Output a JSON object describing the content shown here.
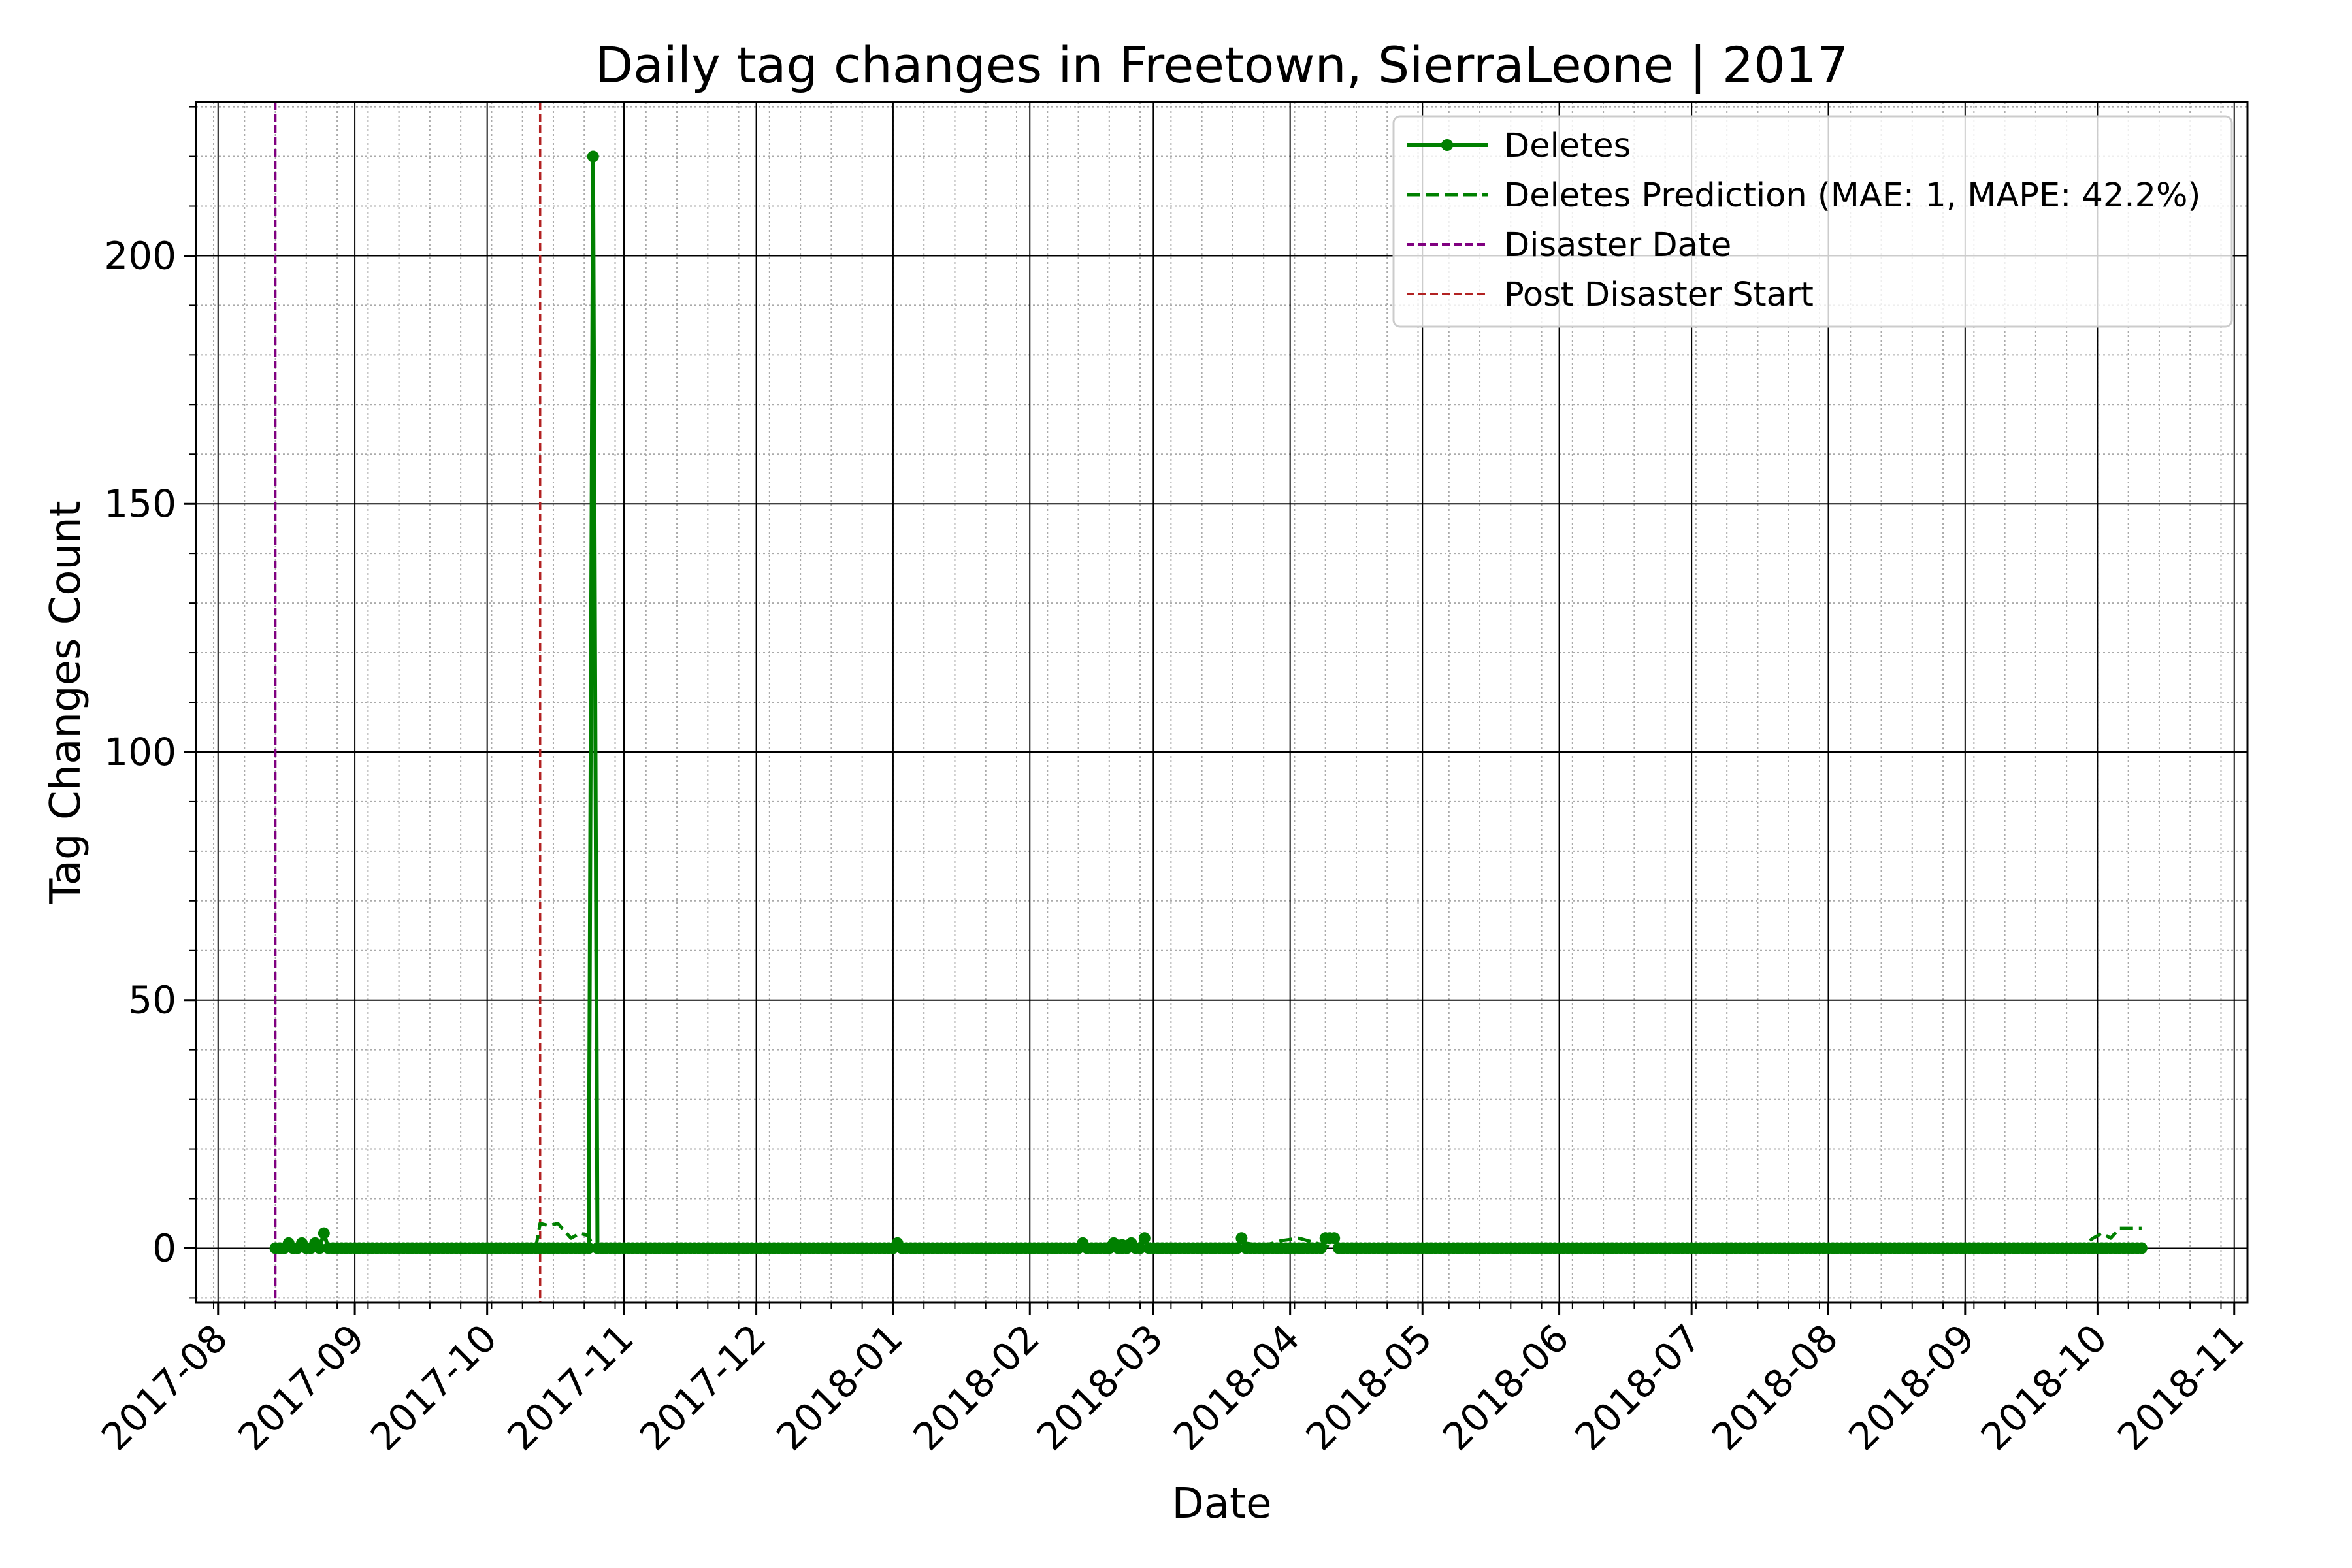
{
  "chart_data": {
    "type": "line",
    "title": "Daily tag changes in Freetown, SierraLeone | 2017",
    "xlabel": "Date",
    "ylabel": "Tag Changes Count",
    "x_range": [
      "2017-07-27",
      "2018-11-04"
    ],
    "ylim": [
      -11,
      231
    ],
    "yticks": [
      0,
      50,
      100,
      150,
      200
    ],
    "xticks": [
      "2017-08-01",
      "2017-09-01",
      "2017-10-01",
      "2017-11-01",
      "2017-12-01",
      "2018-01-01",
      "2018-02-01",
      "2018-03-01",
      "2018-04-01",
      "2018-05-01",
      "2018-06-01",
      "2018-07-01",
      "2018-08-01",
      "2018-09-01",
      "2018-10-01",
      "2018-11-01"
    ],
    "xtick_labels": [
      "2017-08",
      "2017-09",
      "2017-10",
      "2017-11",
      "2017-12",
      "2018-01",
      "2018-02",
      "2018-03",
      "2018-04",
      "2018-05",
      "2018-06",
      "2018-07",
      "2018-08",
      "2018-09",
      "2018-10",
      "2018-11"
    ],
    "grid": true,
    "legend_position": "top-right",
    "colors": {
      "deletes": "#008000",
      "prediction": "#008000",
      "disaster": "#800080",
      "post_disaster": "#b22222"
    },
    "series": [
      {
        "name": "Deletes",
        "style": "solid-markers",
        "baseline": 0,
        "start": "2017-08-14",
        "end": "2018-10-11",
        "points": [
          [
            "2017-08-17",
            1
          ],
          [
            "2017-08-20",
            1
          ],
          [
            "2017-08-23",
            1
          ],
          [
            "2017-08-25",
            3
          ],
          [
            "2017-10-24",
            0
          ],
          [
            "2017-10-25",
            220
          ],
          [
            "2017-10-26",
            0
          ],
          [
            "2018-01-02",
            1
          ],
          [
            "2018-02-13",
            1
          ],
          [
            "2018-02-20",
            1
          ],
          [
            "2018-02-24",
            1
          ],
          [
            "2018-02-27",
            2
          ],
          [
            "2018-03-21",
            2
          ],
          [
            "2018-04-09",
            2
          ],
          [
            "2018-04-10",
            2
          ],
          [
            "2018-04-11",
            2
          ]
        ]
      },
      {
        "name": "Deletes Prediction (MAE: 1, MAPE: 42.2%)",
        "style": "dashed",
        "points": [
          [
            "2017-10-12",
            0
          ],
          [
            "2017-10-13",
            5
          ],
          [
            "2017-10-15",
            4.5
          ],
          [
            "2017-10-17",
            5
          ],
          [
            "2017-10-20",
            2
          ],
          [
            "2017-10-22",
            3
          ],
          [
            "2017-10-24",
            2.5
          ],
          [
            "2017-10-25",
            0
          ],
          [
            "2017-11-30",
            0
          ],
          [
            "2017-12-01",
            1
          ],
          [
            "2017-12-02",
            0
          ],
          [
            "2018-02-11",
            0
          ],
          [
            "2018-02-13",
            1
          ],
          [
            "2018-02-16",
            0
          ],
          [
            "2018-02-19",
            1
          ],
          [
            "2018-02-22",
            1.5
          ],
          [
            "2018-02-25",
            0.5
          ],
          [
            "2018-02-27",
            1.5
          ],
          [
            "2018-03-02",
            0
          ],
          [
            "2018-03-19",
            0
          ],
          [
            "2018-03-22",
            1
          ],
          [
            "2018-03-26",
            0.5
          ],
          [
            "2018-03-30",
            1.5
          ],
          [
            "2018-04-03",
            2
          ],
          [
            "2018-04-07",
            1
          ],
          [
            "2018-04-11",
            0
          ],
          [
            "2018-09-27",
            0
          ],
          [
            "2018-09-30",
            2
          ],
          [
            "2018-10-02",
            3
          ],
          [
            "2018-10-04",
            2
          ],
          [
            "2018-10-06",
            4
          ],
          [
            "2018-10-08",
            4
          ],
          [
            "2018-10-11",
            4
          ]
        ]
      },
      {
        "name": "Disaster Date",
        "style": "vline-dashed",
        "x": "2017-08-14"
      },
      {
        "name": "Post Disaster Start",
        "style": "vline-dashed",
        "x": "2017-10-13"
      }
    ]
  }
}
